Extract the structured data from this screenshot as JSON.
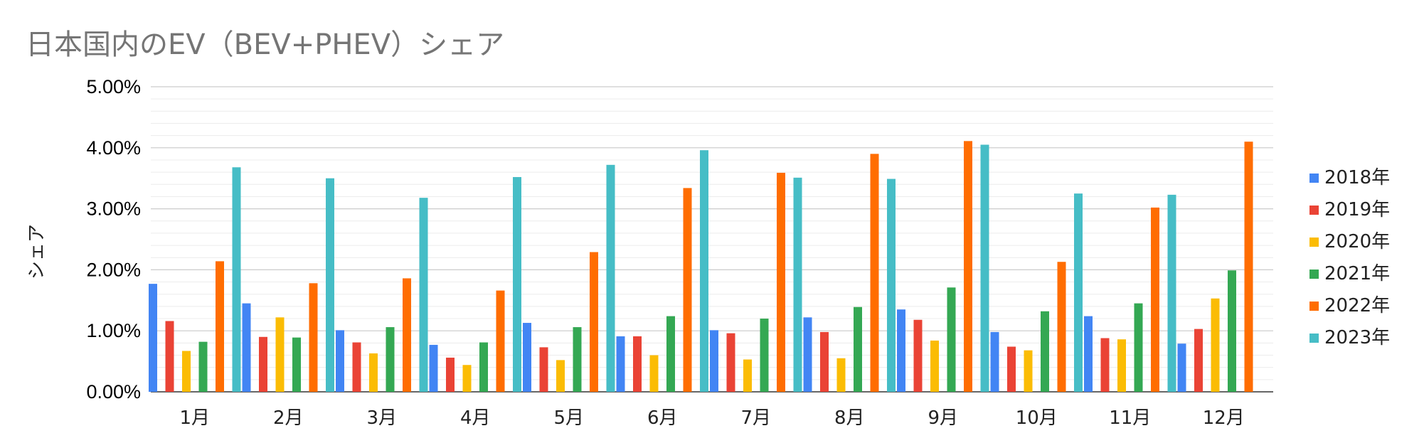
{
  "chart_data": {
    "type": "bar",
    "title": "日本国内のEV（BEV+PHEV）シェア",
    "xlabel": "",
    "ylabel": "シェア",
    "ylim": [
      0,
      0.05
    ],
    "yticks": [
      {
        "value": 0,
        "label": "0.00%"
      },
      {
        "value": 0.01,
        "label": "1.00%"
      },
      {
        "value": 0.02,
        "label": "2.00%"
      },
      {
        "value": 0.03,
        "label": "3.00%"
      },
      {
        "value": 0.04,
        "label": "4.00%"
      },
      {
        "value": 0.05,
        "label": "5.00%"
      }
    ],
    "minor_grid_step": 0.002,
    "grid": true,
    "legend_position": "right",
    "categories": [
      "1月",
      "2月",
      "3月",
      "4月",
      "5月",
      "6月",
      "7月",
      "8月",
      "9月",
      "10月",
      "11月",
      "12月"
    ],
    "series": [
      {
        "name": "2018年",
        "color": "#4285F4",
        "values": [
          0.0177,
          0.0145,
          0.0101,
          0.0077,
          0.0113,
          0.0091,
          0.0101,
          0.0122,
          0.0135,
          0.0098,
          0.0124,
          0.0079
        ]
      },
      {
        "name": "2019年",
        "color": "#EA4335",
        "values": [
          0.0116,
          0.009,
          0.0081,
          0.0056,
          0.0073,
          0.0091,
          0.0096,
          0.0098,
          0.0118,
          0.0074,
          0.0088,
          0.0103
        ]
      },
      {
        "name": "2020年",
        "color": "#FBBC04",
        "values": [
          0.0067,
          0.0122,
          0.0063,
          0.0044,
          0.0052,
          0.006,
          0.0053,
          0.0055,
          0.0084,
          0.0068,
          0.0086,
          0.0153
        ]
      },
      {
        "name": "2021年",
        "color": "#34A853",
        "values": [
          0.0082,
          0.0089,
          0.0106,
          0.0081,
          0.0106,
          0.0124,
          0.012,
          0.0139,
          0.0171,
          0.0132,
          0.0145,
          0.0199
        ]
      },
      {
        "name": "2022年",
        "color": "#FF6D01",
        "values": [
          0.0214,
          0.0178,
          0.0186,
          0.0166,
          0.0229,
          0.0334,
          0.0359,
          0.039,
          0.0411,
          0.0213,
          0.0302,
          0.041
        ]
      },
      {
        "name": "2023年",
        "color": "#46BDC6",
        "values": [
          0.0368,
          0.035,
          0.0318,
          0.0352,
          0.0372,
          0.0396,
          0.0351,
          0.0349,
          0.0405,
          0.0325,
          0.0323,
          null
        ]
      }
    ]
  }
}
